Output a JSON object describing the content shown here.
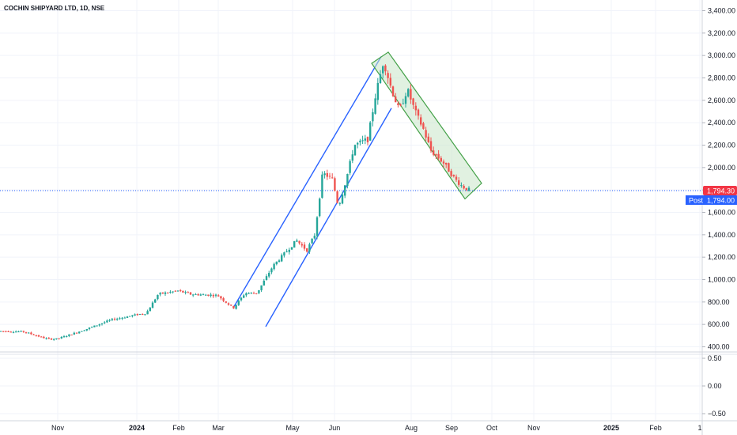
{
  "symbol_title": "COCHIN SHIPYARD LTD, 1D, NSE",
  "chart_data": {
    "type": "candlestick",
    "title": "COCHIN SHIPYARD LTD, 1D, NSE",
    "price_axis": {
      "ticks": [
        "3,400.00",
        "3,200.00",
        "3,000.00",
        "2,800.00",
        "2,600.00",
        "2,400.00",
        "2,200.00",
        "2,000.00",
        "1,800.00",
        "1,600.00",
        "1,400.00",
        "1,200.00",
        "1,000.00",
        "800.00",
        "600.00",
        "400.00"
      ],
      "ylim": [
        400,
        3400
      ]
    },
    "indicator_axis": {
      "ticks": [
        "0.50",
        "0.00",
        "−0.50"
      ],
      "ylim": [
        -0.5,
        0.5
      ]
    },
    "x_ticks": [
      "Nov",
      "2024",
      "Feb",
      "Mar",
      "May",
      "Jun",
      "Aug",
      "Sep",
      "Oct",
      "Nov",
      "2025",
      "Feb",
      "1"
    ],
    "last_price_label": "1,794.30",
    "post_label": "Post",
    "post_price_label": "1,794.00",
    "last_price": 1794.3,
    "key_levels": [
      {
        "period": "Oct 2023",
        "approx_close": 530
      },
      {
        "period": "Dec 2023",
        "approx_close": 700
      },
      {
        "period": "Jan 2024",
        "approx_close": 900
      },
      {
        "period": "Mar 2024",
        "approx_close": 740
      },
      {
        "period": "May 2024",
        "approx_close": 1250
      },
      {
        "period": "Jun 2024",
        "approx_close": 2100
      },
      {
        "period": "early Jul 2024 peak",
        "approx_high": 2980
      },
      {
        "period": "Aug 2024",
        "approx_close": 2400
      },
      {
        "period": "Sep 2024",
        "approx_close": 1794
      }
    ],
    "colors": {
      "up": "#26a69a",
      "down": "#ef5350",
      "ascending_channel": "#2962ff",
      "descending_channel": "#43a047",
      "descending_fill": "#c8e6c9",
      "last_price_tag": "#f23645",
      "post_tag": "#2962ff"
    },
    "annotations": [
      "ascending channel (blue)",
      "descending channel (green, shaded)"
    ],
    "grid": true
  }
}
